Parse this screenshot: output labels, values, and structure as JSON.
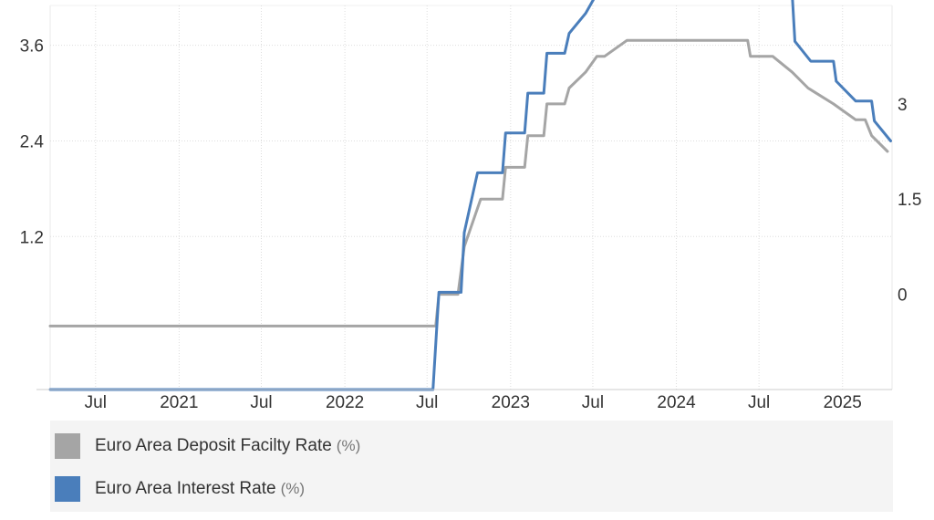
{
  "chart_data": {
    "type": "line",
    "title": "",
    "xlabel": "",
    "ylabel": "",
    "x_range": [
      "2020-03-23",
      "2025-04-20"
    ],
    "x_ticks": [
      {
        "date": "2020-07-01",
        "label": "Jul"
      },
      {
        "date": "2021-01-01",
        "label": "2021"
      },
      {
        "date": "2021-07-01",
        "label": "Jul"
      },
      {
        "date": "2022-01-01",
        "label": "2022"
      },
      {
        "date": "2022-07-01",
        "label": "Jul"
      },
      {
        "date": "2023-01-01",
        "label": "2023"
      },
      {
        "date": "2023-07-01",
        "label": "Jul"
      },
      {
        "date": "2024-01-01",
        "label": "2024"
      },
      {
        "date": "2024-07-01",
        "label": "Jul"
      },
      {
        "date": "2025-01-01",
        "label": "2025"
      }
    ],
    "left_axis": {
      "ylim": [
        -0.72,
        4.1
      ],
      "ticks": [
        {
          "value": 1.2,
          "label": "1.2"
        },
        {
          "value": 2.4,
          "label": "2.4"
        },
        {
          "value": 3.6,
          "label": "3.6"
        }
      ]
    },
    "right_axis": {
      "ylim": [
        -1.5,
        4.55
      ],
      "ticks": [
        {
          "value": 0,
          "label": "0"
        },
        {
          "value": 1.5,
          "label": "1.5"
        },
        {
          "value": 3,
          "label": "3"
        }
      ]
    },
    "grid": true,
    "legend_position": "bottom",
    "series": [
      {
        "name": "Euro Area Deposit Facilty Rate",
        "unit": "(%)",
        "axis": "right",
        "color": "#a5a5a5",
        "points": [
          [
            "2020-03-23",
            -0.5
          ],
          [
            "2022-07-20",
            -0.5
          ],
          [
            "2022-07-27",
            0.0
          ],
          [
            "2022-09-07",
            0.0
          ],
          [
            "2022-09-21",
            0.75
          ],
          [
            "2022-10-27",
            1.5
          ],
          [
            "2022-11-02",
            1.5
          ],
          [
            "2022-12-14",
            1.5
          ],
          [
            "2022-12-21",
            2.0
          ],
          [
            "2023-02-01",
            2.0
          ],
          [
            "2023-02-08",
            2.5
          ],
          [
            "2023-03-15",
            2.5
          ],
          [
            "2023-03-22",
            3.0
          ],
          [
            "2023-04-30",
            3.0
          ],
          [
            "2023-05-10",
            3.25
          ],
          [
            "2023-06-15",
            3.5
          ],
          [
            "2023-07-10",
            3.75
          ],
          [
            "2023-07-27",
            3.75
          ],
          [
            "2023-09-14",
            4.0
          ],
          [
            "2024-06-06",
            4.0
          ],
          [
            "2024-06-12",
            3.75
          ],
          [
            "2024-07-31",
            3.75
          ],
          [
            "2024-09-12",
            3.5
          ],
          [
            "2024-10-17",
            3.25
          ],
          [
            "2024-12-12",
            3.0
          ],
          [
            "2025-01-30",
            2.75
          ],
          [
            "2025-02-20",
            2.75
          ],
          [
            "2025-03-06",
            2.5
          ],
          [
            "2025-04-10",
            2.25
          ]
        ]
      },
      {
        "name": "Euro Area Interest Rate",
        "unit": "(%)",
        "axis": "left",
        "color": "#4a7ebb",
        "points": [
          [
            "2020-03-23",
            -0.72
          ],
          [
            "2022-07-14",
            -0.72
          ],
          [
            "2022-07-27",
            0.5
          ],
          [
            "2022-09-14",
            0.5
          ],
          [
            "2022-09-21",
            1.25
          ],
          [
            "2022-10-20",
            2.0
          ],
          [
            "2022-11-02",
            2.0
          ],
          [
            "2022-12-14",
            2.0
          ],
          [
            "2022-12-21",
            2.5
          ],
          [
            "2023-02-01",
            2.5
          ],
          [
            "2023-02-08",
            3.0
          ],
          [
            "2023-03-15",
            3.0
          ],
          [
            "2023-03-22",
            3.5
          ],
          [
            "2023-04-30",
            3.5
          ],
          [
            "2023-05-10",
            3.75
          ],
          [
            "2023-06-15",
            4.0
          ],
          [
            "2023-07-10",
            4.25
          ],
          [
            "2023-07-27",
            4.25
          ],
          [
            "2023-09-20",
            4.5
          ],
          [
            "2024-06-06",
            4.5
          ],
          [
            "2024-06-12",
            4.25
          ],
          [
            "2024-09-12",
            4.25
          ],
          [
            "2024-09-18",
            3.65
          ],
          [
            "2024-10-23",
            3.4
          ],
          [
            "2024-12-12",
            3.4
          ],
          [
            "2024-12-18",
            3.15
          ],
          [
            "2025-01-30",
            2.9
          ],
          [
            "2025-03-06",
            2.9
          ],
          [
            "2025-03-12",
            2.65
          ],
          [
            "2025-04-17",
            2.4
          ]
        ]
      }
    ]
  }
}
